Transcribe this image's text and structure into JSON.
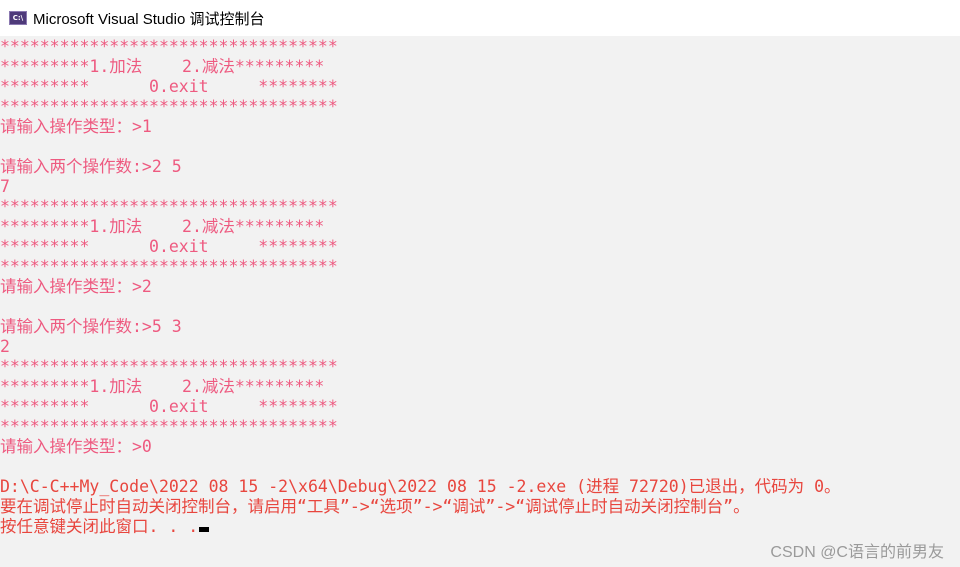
{
  "window": {
    "title": "Microsoft Visual Studio 调试控制台",
    "icon": "console-app-icon",
    "icon_text": "C:\\"
  },
  "colors": {
    "output": "#ee5a80",
    "exit_message": "#e8463e",
    "background": "#f2f2f2"
  },
  "lines": [
    "**********************************",
    "*********1.加法    2.减法*********",
    "*********      0.exit     ********",
    "**********************************",
    "请输入操作类型：>1",
    "",
    "请输入两个操作数:>2 5",
    "7",
    "**********************************",
    "*********1.加法    2.减法*********",
    "*********      0.exit     ********",
    "**********************************",
    "请输入操作类型：>2",
    "",
    "请输入两个操作数:>5 3",
    "2",
    "**********************************",
    "*********1.加法    2.减法*********",
    "*********      0.exit     ********",
    "**********************************",
    "请输入操作类型：>0",
    "",
    "D:\\C-C++My_Code\\2022 08 15 -2\\x64\\Debug\\2022 08 15 -2.exe (进程 72720)已退出，代码为 0。",
    "要在调试停止时自动关闭控制台，请启用“工具”->“选项”->“调试”->“调试停止时自动关闭控制台”。",
    "按任意键关闭此窗口. . ."
  ],
  "watermark": "CSDN @C语言的前男友"
}
